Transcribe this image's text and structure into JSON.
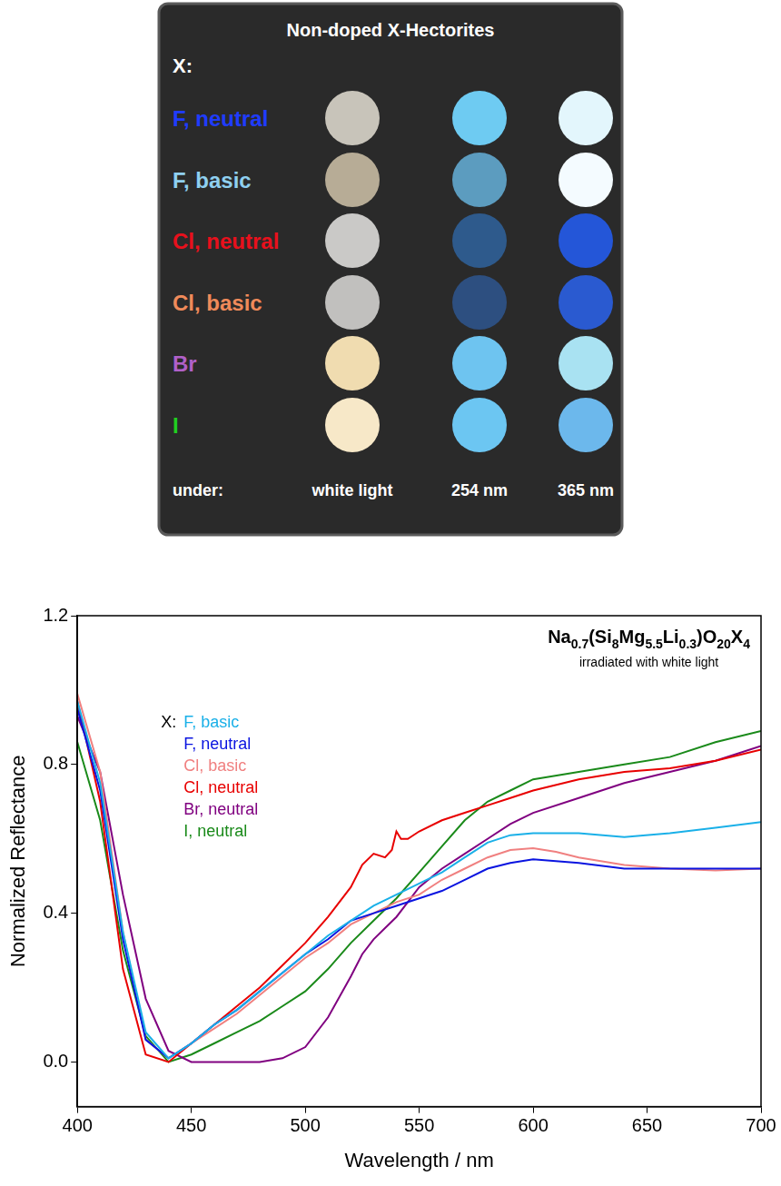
{
  "panel": {
    "title": "Non-doped X-Hectorites",
    "row_header": "X:",
    "column_header": "under:",
    "columns": [
      "white light",
      "254 nm",
      "365 nm"
    ],
    "rows": [
      {
        "label": "F, neutral",
        "color": "#1f3cff",
        "swatches": [
          "#c8c4ba",
          "#6ecbf2",
          "#e3f6fc"
        ]
      },
      {
        "label": "F, basic",
        "color": "#8fd0f0",
        "swatches": [
          "#b7ac96",
          "#5c9cbf",
          "#f4fbff"
        ]
      },
      {
        "label": "Cl, neutral",
        "color": "#e8101c",
        "swatches": [
          "#cac9c7",
          "#2e5a8c",
          "#2456d8"
        ]
      },
      {
        "label": "Cl, basic",
        "color": "#f08a5a",
        "swatches": [
          "#c1c0be",
          "#2d4f80",
          "#2a5ad0"
        ]
      },
      {
        "label": "Br",
        "color": "#b060c8",
        "swatches": [
          "#f0dcb0",
          "#6ec4f0",
          "#a9e2f2"
        ]
      },
      {
        "label": "I",
        "color": "#20d020",
        "swatches": [
          "#f7e8c8",
          "#6cc6f2",
          "#6cb8ec"
        ]
      }
    ]
  },
  "chart_data": {
    "type": "line",
    "x_label": "Wavelength / nm",
    "y_label": "Normalized Reflectance",
    "annotations": [
      "Na0.7(Si8Mg5.5Li0.3)O20X4",
      "irradiated with white light"
    ],
    "legend": "upper left",
    "legend_title": "X:",
    "grid": false,
    "xlim": [
      400,
      700
    ],
    "xticks": [
      400,
      450,
      500,
      550,
      600,
      650,
      700
    ],
    "ylim": [
      -0.12,
      1.2
    ],
    "yticks": [
      {
        "value": 0,
        "label": "0.0"
      },
      {
        "value": 0.4,
        "label": "0.4"
      },
      {
        "value": 0.8,
        "label": "0.8"
      },
      {
        "value": 1.2,
        "label": "1.2"
      }
    ],
    "series": [
      {
        "name": "F, basic",
        "color": "#1ab0e8",
        "x": [
          400,
          410,
          420,
          430,
          440,
          450,
          460,
          470,
          480,
          490,
          500,
          510,
          520,
          530,
          540,
          550,
          560,
          570,
          580,
          590,
          600,
          620,
          640,
          660,
          680,
          700
        ],
        "values": [
          0.97,
          0.75,
          0.35,
          0.08,
          0.01,
          0.05,
          0.1,
          0.14,
          0.19,
          0.24,
          0.29,
          0.34,
          0.38,
          0.42,
          0.45,
          0.48,
          0.51,
          0.55,
          0.59,
          0.61,
          0.615,
          0.615,
          0.605,
          0.615,
          0.63,
          0.645
        ]
      },
      {
        "name": "F, neutral",
        "color": "#0a14e0",
        "x": [
          400,
          410,
          420,
          430,
          440,
          450,
          460,
          470,
          480,
          490,
          500,
          510,
          520,
          530,
          540,
          550,
          560,
          570,
          580,
          590,
          600,
          620,
          640,
          660,
          680,
          700
        ],
        "values": [
          0.95,
          0.73,
          0.33,
          0.06,
          0.01,
          0.05,
          0.1,
          0.14,
          0.19,
          0.24,
          0.29,
          0.33,
          0.38,
          0.4,
          0.42,
          0.44,
          0.46,
          0.49,
          0.52,
          0.535,
          0.545,
          0.535,
          0.52,
          0.52,
          0.52,
          0.52
        ]
      },
      {
        "name": "Cl, basic",
        "color": "#f08080",
        "x": [
          400,
          410,
          420,
          430,
          440,
          450,
          460,
          470,
          480,
          490,
          500,
          510,
          520,
          530,
          540,
          550,
          560,
          570,
          580,
          590,
          600,
          610,
          620,
          640,
          660,
          680,
          700
        ],
        "values": [
          0.99,
          0.78,
          0.35,
          0.06,
          0.01,
          0.05,
          0.09,
          0.13,
          0.18,
          0.23,
          0.28,
          0.32,
          0.37,
          0.4,
          0.43,
          0.45,
          0.49,
          0.52,
          0.55,
          0.57,
          0.575,
          0.565,
          0.55,
          0.53,
          0.52,
          0.515,
          0.52
        ]
      },
      {
        "name": "Cl, neutral",
        "color": "#e80000",
        "x": [
          400,
          410,
          420,
          430,
          440,
          450,
          460,
          470,
          480,
          490,
          500,
          510,
          520,
          525,
          530,
          535,
          538,
          540,
          542,
          545,
          550,
          560,
          570,
          580,
          590,
          600,
          620,
          640,
          660,
          680,
          700
        ],
        "values": [
          0.97,
          0.7,
          0.25,
          0.02,
          0.0,
          0.05,
          0.1,
          0.15,
          0.2,
          0.26,
          0.32,
          0.39,
          0.47,
          0.53,
          0.56,
          0.55,
          0.57,
          0.62,
          0.6,
          0.6,
          0.62,
          0.65,
          0.67,
          0.69,
          0.71,
          0.73,
          0.76,
          0.78,
          0.79,
          0.81,
          0.84
        ]
      },
      {
        "name": "Br, neutral",
        "color": "#800080",
        "x": [
          400,
          410,
          420,
          430,
          440,
          450,
          460,
          470,
          480,
          490,
          500,
          510,
          520,
          525,
          530,
          535,
          540,
          545,
          550,
          560,
          570,
          580,
          590,
          600,
          620,
          640,
          660,
          680,
          700
        ],
        "values": [
          0.93,
          0.78,
          0.45,
          0.17,
          0.03,
          0.0,
          0.0,
          0.0,
          0.0,
          0.01,
          0.04,
          0.12,
          0.23,
          0.29,
          0.33,
          0.36,
          0.39,
          0.43,
          0.47,
          0.52,
          0.56,
          0.6,
          0.64,
          0.67,
          0.71,
          0.75,
          0.78,
          0.81,
          0.85
        ]
      },
      {
        "name": "I, neutral",
        "color": "#1a8a1a",
        "x": [
          400,
          410,
          420,
          430,
          440,
          450,
          460,
          470,
          480,
          490,
          500,
          510,
          520,
          530,
          540,
          550,
          560,
          570,
          580,
          590,
          600,
          620,
          640,
          660,
          680,
          700
        ],
        "values": [
          0.86,
          0.65,
          0.3,
          0.07,
          0.0,
          0.02,
          0.05,
          0.08,
          0.11,
          0.15,
          0.19,
          0.25,
          0.32,
          0.38,
          0.44,
          0.51,
          0.58,
          0.65,
          0.7,
          0.73,
          0.76,
          0.78,
          0.8,
          0.82,
          0.86,
          0.89
        ]
      }
    ]
  }
}
